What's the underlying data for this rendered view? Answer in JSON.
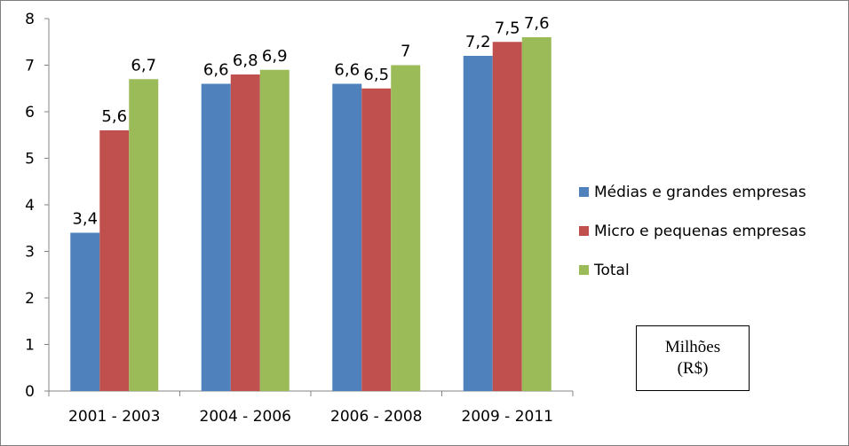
{
  "chart_data": {
    "type": "bar",
    "categories": [
      "2001 - 2003",
      "2004 - 2006",
      "2006 - 2008",
      "2009 - 2011"
    ],
    "series": [
      {
        "name": "Médias e grandes empresas",
        "color": "#4f81bd",
        "values": [
          3.4,
          6.6,
          6.6,
          7.2
        ],
        "labels": [
          "3,4",
          "6,6",
          "6,6",
          "7,2"
        ]
      },
      {
        "name": "Micro e pequenas empresas",
        "color": "#c0504d",
        "values": [
          5.6,
          6.8,
          6.5,
          7.5
        ],
        "labels": [
          "5,6",
          "6,8",
          "6,5",
          "7,5"
        ]
      },
      {
        "name": "Total",
        "color": "#9bbb59",
        "values": [
          6.7,
          6.9,
          7.0,
          7.6
        ],
        "labels": [
          "6,7",
          "6,9",
          "7",
          "7,6"
        ]
      }
    ],
    "ylim": [
      0,
      8
    ],
    "yticks": [
      "0",
      "1",
      "2",
      "3",
      "4",
      "5",
      "6",
      "7",
      "8"
    ],
    "grid": false,
    "legend_position": "right"
  },
  "unit_box": {
    "line1": "Milhões",
    "line2": "(R$)"
  }
}
